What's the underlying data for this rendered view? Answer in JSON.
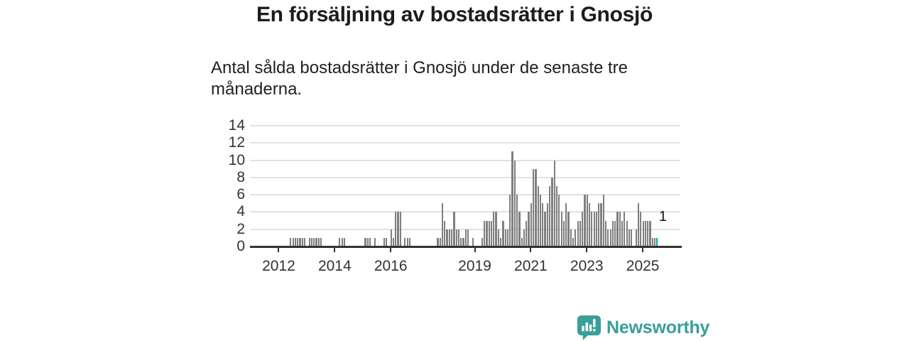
{
  "title": "En försäljning av bostadsrätter i Gnosjö",
  "subtitle": "Antal sålda bostadsrätter i Gnosjö under de senaste tre månaderna.",
  "branding": {
    "logo_text": "Newsworthy",
    "logo_color": "#3a9e9a",
    "logo_icon": "speech-bubble-bar-chart"
  },
  "colors": {
    "bar": "#7f7f7f",
    "highlight_bar": "#00a295",
    "gridline": "#e2e2e2",
    "axis": "#333333",
    "text": "#222222"
  },
  "chart_data": {
    "type": "bar",
    "title": "En försäljning av bostadsrätter i Gnosjö",
    "subtitle": "Antal sålda bostadsrätter i Gnosjö under de senaste tre månaderna.",
    "x_unit": "month",
    "x_start": "2011-01",
    "x_end": "2025-07",
    "ylim": [
      0,
      14
    ],
    "yticks": [
      0,
      2,
      4,
      6,
      8,
      10,
      12,
      14
    ],
    "grid": true,
    "xtick_labels": [
      "2012",
      "2014",
      "2016",
      "2019",
      "2021",
      "2023",
      "2025"
    ],
    "xtick_month_index": [
      12,
      36,
      60,
      96,
      120,
      144,
      168
    ],
    "total_month_slots": 185,
    "highlight_last_bar": true,
    "last_value_label": "1",
    "values": [
      0,
      0,
      0,
      0,
      0,
      0,
      0,
      0,
      0,
      0,
      0,
      0,
      0,
      0,
      0,
      0,
      0,
      1,
      1,
      1,
      1,
      1,
      1,
      1,
      0,
      1,
      1,
      1,
      1,
      1,
      1,
      0,
      0,
      0,
      0,
      0,
      0,
      0,
      1,
      1,
      1,
      0,
      0,
      0,
      0,
      0,
      0,
      0,
      0,
      1,
      1,
      1,
      0,
      1,
      0,
      0,
      0,
      1,
      1,
      0,
      2,
      1,
      4,
      4,
      4,
      0,
      1,
      1,
      1,
      0,
      0,
      0,
      0,
      0,
      0,
      0,
      0,
      0,
      0,
      0,
      1,
      1,
      5,
      3,
      2,
      2,
      2,
      4,
      2,
      2,
      1,
      1,
      2,
      2,
      0,
      1,
      0,
      0,
      0,
      1,
      3,
      3,
      3,
      3,
      4,
      4,
      2,
      1,
      3,
      2,
      2,
      6,
      11,
      10,
      6,
      4,
      1,
      2,
      3,
      4,
      5,
      9,
      9,
      7,
      6,
      5,
      4,
      5,
      7,
      8,
      10,
      7,
      6,
      4,
      3,
      5,
      4,
      2,
      1,
      2,
      3,
      3,
      4,
      6,
      6,
      5,
      4,
      4,
      4,
      5,
      5,
      6,
      3,
      2,
      2,
      3,
      3,
      4,
      4,
      3,
      4,
      3,
      2,
      2,
      0,
      2,
      5,
      4,
      3,
      3,
      3,
      3,
      1,
      1,
      1
    ]
  }
}
